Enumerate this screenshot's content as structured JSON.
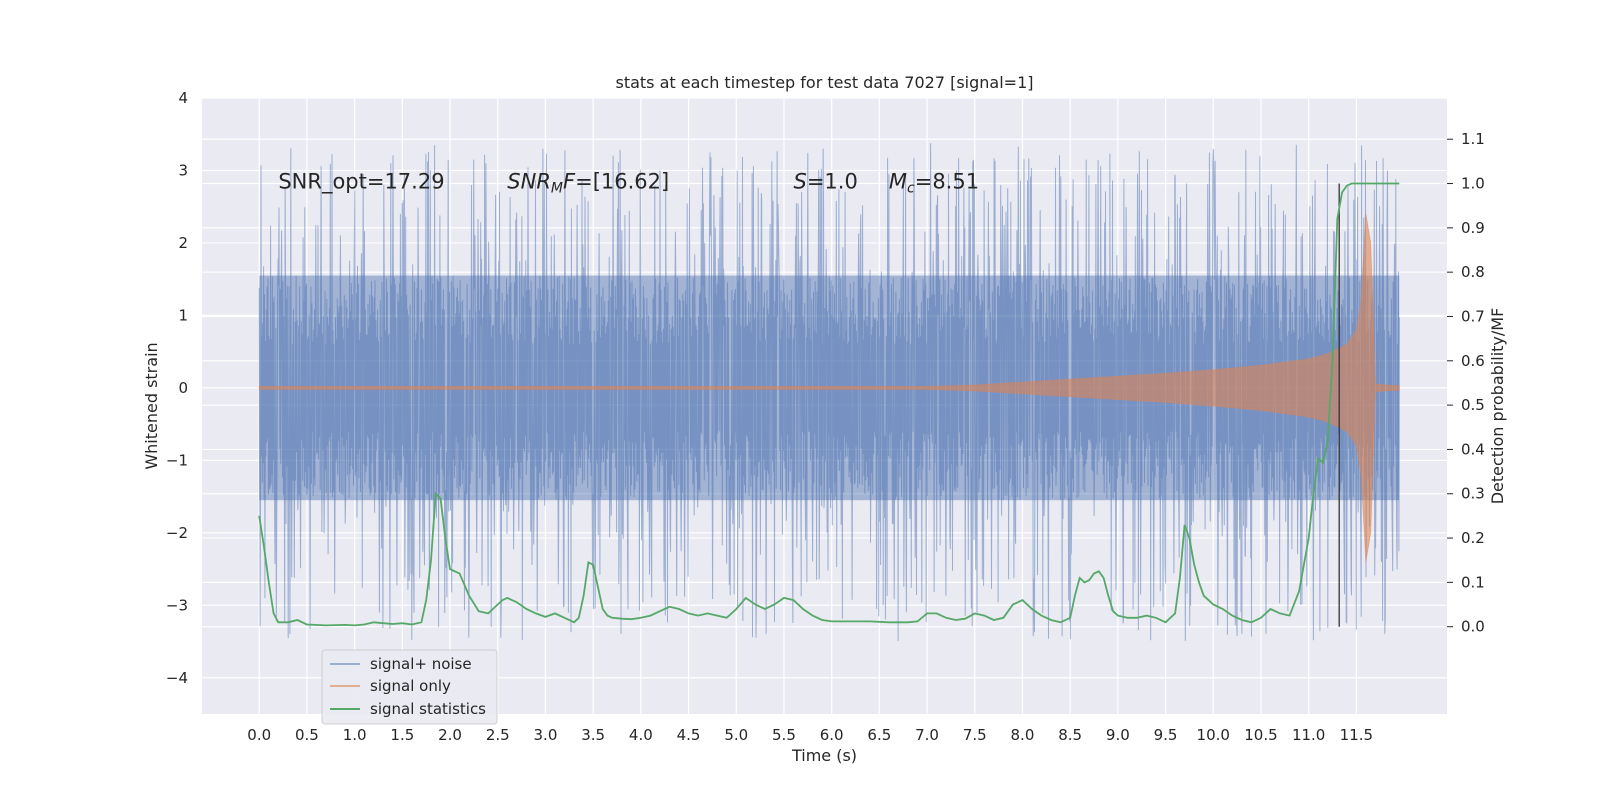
{
  "chart_data": {
    "type": "line",
    "title": "stats at each timestep for test data 7027 [signal=1]",
    "xlabel": "Time (s)",
    "ylabel_left": "Whitened strain",
    "ylabel_right": "Detection probability/MF",
    "xlim": [
      -0.6,
      12.45
    ],
    "ylim_left": [
      -4.5,
      4
    ],
    "ylim_right": [
      -0.197,
      1.193
    ],
    "x_ticks": [
      0.0,
      0.5,
      1.0,
      1.5,
      2.0,
      2.5,
      3.0,
      3.5,
      4.0,
      4.5,
      5.0,
      5.5,
      6.0,
      6.5,
      7.0,
      7.5,
      8.0,
      8.5,
      9.0,
      9.5,
      10.0,
      10.5,
      11.0,
      11.5
    ],
    "x_tick_labels": [
      "0.0",
      "0.5",
      "1.0",
      "1.5",
      "2.0",
      "2.5",
      "3.0",
      "3.5",
      "4.0",
      "4.5",
      "5.0",
      "5.5",
      "6.0",
      "6.5",
      "7.0",
      "7.5",
      "8.0",
      "8.5",
      "9.0",
      "9.5",
      "10.0",
      "10.5",
      "11.0",
      "11.5"
    ],
    "y_left_ticks": [
      4,
      3,
      2,
      1,
      0,
      -1,
      -2,
      -3,
      -4
    ],
    "y_left_tick_labels": [
      "4",
      "3",
      "2",
      "1",
      "0",
      "−1",
      "−2",
      "−3",
      "−4"
    ],
    "y_right_ticks": [
      1.1,
      1.0,
      0.9,
      0.8,
      0.7,
      0.6,
      0.5,
      0.4,
      0.3,
      0.2,
      0.1,
      0.0
    ],
    "y_right_tick_labels": [
      "1.1",
      "1.0",
      "0.9",
      "0.8",
      "0.7",
      "0.6",
      "0.5",
      "0.4",
      "0.3",
      "0.2",
      "0.1",
      "0.0"
    ],
    "grid": true,
    "legend_position": "lower-left",
    "annotations": [
      {
        "key": "snr_opt",
        "text": "SNR_opt=17.29",
        "x": 0.2,
        "y": 2.75
      },
      {
        "key": "snr_mf",
        "text": "SNR_MF=[16.62]",
        "x": 2.6,
        "y": 2.75
      },
      {
        "key": "s",
        "text": "S=1.0",
        "x": 5.6,
        "y": 2.75
      },
      {
        "key": "mc",
        "text": "M_c=8.51",
        "x": 6.6,
        "y": 2.75
      }
    ],
    "vertical_marker": {
      "x": 11.32,
      "y_range": [
        0.0,
        1.0
      ]
    },
    "series": [
      {
        "name": "signal+ noise",
        "color": "#4c72b0",
        "opacity": 0.5,
        "axis": "left",
        "description": "noisy whitened strain, approx envelope",
        "envelope": {
          "x": [
            0.0,
            11.95
          ],
          "band_upper": 1.55,
          "band_lower": -1.55,
          "spike_upper_range": [
            1.6,
            3.4
          ],
          "spike_lower_range": [
            -1.6,
            -3.5
          ]
        }
      },
      {
        "name": "signal only",
        "color": "#dd8452",
        "opacity": 0.6,
        "axis": "left",
        "envelope_x": [
          0.0,
          7.0,
          7.5,
          8.0,
          8.5,
          9.0,
          9.5,
          10.0,
          10.5,
          11.0,
          11.2,
          11.4,
          11.5,
          11.55,
          11.6,
          11.65,
          11.7,
          11.95
        ],
        "envelope_amp": [
          0.02,
          0.02,
          0.04,
          0.08,
          0.12,
          0.16,
          0.2,
          0.25,
          0.31,
          0.4,
          0.47,
          0.6,
          0.8,
          1.2,
          2.4,
          2.0,
          0.05,
          0.03
        ]
      },
      {
        "name": "signal statistics",
        "color": "#55a868",
        "opacity": 1,
        "axis": "right",
        "x": [
          0.0,
          0.05,
          0.1,
          0.15,
          0.2,
          0.3,
          0.4,
          0.5,
          0.7,
          0.9,
          1.0,
          1.1,
          1.2,
          1.3,
          1.4,
          1.5,
          1.6,
          1.7,
          1.75,
          1.8,
          1.85,
          1.9,
          1.95,
          2.0,
          2.1,
          2.2,
          2.3,
          2.4,
          2.5,
          2.55,
          2.6,
          2.7,
          2.8,
          2.9,
          3.0,
          3.1,
          3.2,
          3.3,
          3.35,
          3.4,
          3.45,
          3.5,
          3.55,
          3.6,
          3.65,
          3.7,
          3.8,
          3.9,
          4.0,
          4.1,
          4.2,
          4.3,
          4.4,
          4.5,
          4.6,
          4.7,
          4.8,
          4.9,
          5.0,
          5.1,
          5.2,
          5.3,
          5.4,
          5.5,
          5.6,
          5.7,
          5.8,
          5.9,
          6.0,
          6.2,
          6.4,
          6.6,
          6.8,
          6.9,
          7.0,
          7.1,
          7.2,
          7.3,
          7.4,
          7.5,
          7.6,
          7.7,
          7.8,
          7.9,
          8.0,
          8.1,
          8.2,
          8.3,
          8.4,
          8.5,
          8.55,
          8.6,
          8.65,
          8.7,
          8.75,
          8.8,
          8.85,
          8.9,
          8.95,
          9.0,
          9.1,
          9.2,
          9.3,
          9.4,
          9.5,
          9.6,
          9.65,
          9.7,
          9.75,
          9.8,
          9.85,
          9.9,
          9.95,
          10.0,
          10.1,
          10.2,
          10.3,
          10.4,
          10.5,
          10.6,
          10.7,
          10.8,
          10.9,
          11.0,
          11.05,
          11.1,
          11.15,
          11.2,
          11.25,
          11.3,
          11.35,
          11.4,
          11.45,
          11.5,
          11.6,
          11.7,
          11.8,
          11.95
        ],
        "values": [
          0.25,
          0.18,
          0.1,
          0.03,
          0.01,
          0.01,
          0.015,
          0.005,
          0.003,
          0.004,
          0.003,
          0.005,
          0.01,
          0.008,
          0.006,
          0.008,
          0.005,
          0.01,
          0.06,
          0.15,
          0.3,
          0.29,
          0.2,
          0.13,
          0.12,
          0.07,
          0.035,
          0.03,
          0.05,
          0.06,
          0.065,
          0.055,
          0.04,
          0.03,
          0.022,
          0.03,
          0.02,
          0.01,
          0.02,
          0.07,
          0.145,
          0.14,
          0.09,
          0.04,
          0.025,
          0.02,
          0.018,
          0.017,
          0.02,
          0.025,
          0.035,
          0.045,
          0.04,
          0.03,
          0.025,
          0.03,
          0.025,
          0.02,
          0.04,
          0.065,
          0.05,
          0.04,
          0.05,
          0.065,
          0.06,
          0.04,
          0.025,
          0.015,
          0.012,
          0.012,
          0.012,
          0.01,
          0.01,
          0.012,
          0.03,
          0.03,
          0.02,
          0.015,
          0.018,
          0.03,
          0.025,
          0.015,
          0.02,
          0.05,
          0.06,
          0.04,
          0.025,
          0.015,
          0.01,
          0.02,
          0.07,
          0.11,
          0.1,
          0.105,
          0.12,
          0.125,
          0.11,
          0.07,
          0.035,
          0.025,
          0.02,
          0.02,
          0.025,
          0.02,
          0.01,
          0.03,
          0.11,
          0.23,
          0.2,
          0.14,
          0.1,
          0.07,
          0.06,
          0.05,
          0.04,
          0.025,
          0.015,
          0.01,
          0.02,
          0.04,
          0.03,
          0.025,
          0.08,
          0.2,
          0.3,
          0.38,
          0.37,
          0.42,
          0.6,
          0.92,
          0.98,
          0.995,
          1.0,
          1.0,
          1.0,
          1.0,
          1.0,
          1.0
        ]
      }
    ]
  }
}
